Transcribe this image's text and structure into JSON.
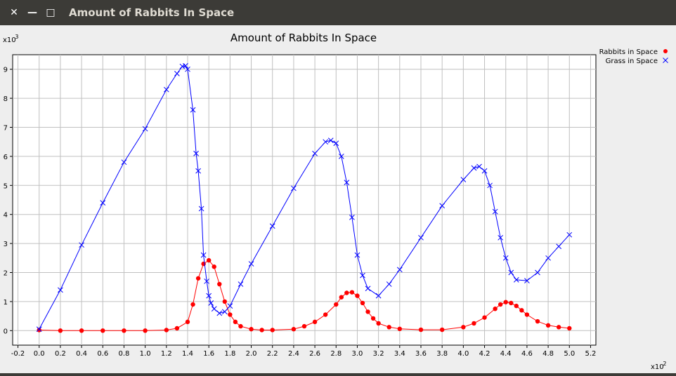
{
  "window": {
    "title": "Amount of Rabbits In Space",
    "close_icon": "close-icon",
    "minimize_icon": "minimize-icon",
    "maximize_icon": "maximize-icon"
  },
  "colors": {
    "rabbits": "#ff0000",
    "grass": "#0000ff",
    "plot_bg": "#ffffff",
    "grid": "#c0c0c0",
    "window_bg": "#eeeeee",
    "titlebar_bg": "#3c3b37"
  },
  "chart_data": {
    "type": "line",
    "title": "Amount of Rabbits In Space",
    "x_multiplier": "x10^2",
    "y_multiplier": "x10^3",
    "xlim": [
      -0.25,
      5.25
    ],
    "ylim": [
      -0.5,
      9.5
    ],
    "grid": true,
    "legend": "top-right outside",
    "xticks": [
      "-0.2",
      "0.0",
      "0.2",
      "0.4",
      "0.6",
      "0.8",
      "1.0",
      "1.2",
      "1.4",
      "1.6",
      "1.8",
      "2.0",
      "2.2",
      "2.4",
      "2.6",
      "2.8",
      "3.0",
      "3.2",
      "3.4",
      "3.6",
      "3.8",
      "4.0",
      "4.2",
      "4.4",
      "4.6",
      "4.8",
      "5.0",
      "5.2"
    ],
    "yticks": [
      "0",
      "1",
      "2",
      "3",
      "4",
      "5",
      "6",
      "7",
      "8",
      "9"
    ],
    "series": [
      {
        "name": "Rabbits in Space",
        "marker": "dot",
        "x": [
          0.0,
          0.2,
          0.4,
          0.6,
          0.8,
          1.0,
          1.2,
          1.3,
          1.4,
          1.45,
          1.5,
          1.55,
          1.6,
          1.65,
          1.7,
          1.75,
          1.8,
          1.85,
          1.9,
          2.0,
          2.1,
          2.2,
          2.4,
          2.5,
          2.6,
          2.7,
          2.8,
          2.85,
          2.9,
          2.95,
          3.0,
          3.05,
          3.1,
          3.15,
          3.2,
          3.3,
          3.4,
          3.6,
          3.8,
          4.0,
          4.1,
          4.2,
          4.3,
          4.35,
          4.4,
          4.45,
          4.5,
          4.55,
          4.6,
          4.7,
          4.8,
          4.9,
          5.0
        ],
        "y": [
          0.02,
          0.0,
          0.0,
          0.0,
          0.0,
          0.0,
          0.02,
          0.08,
          0.3,
          0.9,
          1.8,
          2.3,
          2.42,
          2.2,
          1.6,
          1.0,
          0.55,
          0.3,
          0.15,
          0.05,
          0.02,
          0.02,
          0.05,
          0.15,
          0.3,
          0.55,
          0.9,
          1.15,
          1.3,
          1.32,
          1.2,
          0.95,
          0.65,
          0.42,
          0.25,
          0.12,
          0.06,
          0.03,
          0.03,
          0.12,
          0.25,
          0.45,
          0.75,
          0.9,
          0.98,
          0.95,
          0.85,
          0.7,
          0.55,
          0.32,
          0.18,
          0.12,
          0.08
        ]
      },
      {
        "name": "Grass in Space",
        "marker": "cross",
        "x": [
          0.0,
          0.2,
          0.4,
          0.6,
          0.8,
          1.0,
          1.2,
          1.3,
          1.35,
          1.38,
          1.4,
          1.45,
          1.48,
          1.5,
          1.53,
          1.55,
          1.58,
          1.6,
          1.62,
          1.65,
          1.7,
          1.75,
          1.8,
          1.9,
          2.0,
          2.2,
          2.4,
          2.6,
          2.7,
          2.75,
          2.8,
          2.85,
          2.9,
          2.95,
          3.0,
          3.05,
          3.1,
          3.2,
          3.3,
          3.4,
          3.6,
          3.8,
          4.0,
          4.1,
          4.15,
          4.2,
          4.25,
          4.3,
          4.35,
          4.4,
          4.45,
          4.5,
          4.6,
          4.7,
          4.8,
          4.9,
          5.0
        ],
        "y": [
          0.05,
          1.4,
          2.95,
          4.4,
          5.8,
          6.95,
          8.3,
          8.85,
          9.1,
          9.12,
          9.0,
          7.6,
          6.1,
          5.5,
          4.2,
          2.6,
          1.7,
          1.2,
          0.95,
          0.75,
          0.6,
          0.65,
          0.85,
          1.6,
          2.3,
          3.6,
          4.9,
          6.1,
          6.5,
          6.55,
          6.45,
          6.0,
          5.1,
          3.9,
          2.6,
          1.9,
          1.45,
          1.2,
          1.6,
          2.1,
          3.2,
          4.3,
          5.2,
          5.6,
          5.65,
          5.5,
          5.0,
          4.1,
          3.2,
          2.5,
          2.0,
          1.75,
          1.72,
          2.0,
          2.5,
          2.9,
          3.3
        ]
      }
    ]
  }
}
